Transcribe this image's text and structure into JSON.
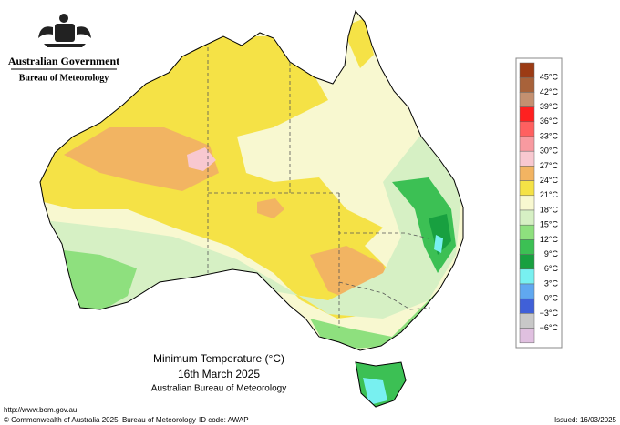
{
  "header": {
    "agency": "Australian Government",
    "bureau": "Bureau of Meteorology"
  },
  "map": {
    "title": "Minimum Temperature (°C)",
    "date": "16th March 2025",
    "source": "Australian Bureau of Meteorology"
  },
  "legend": {
    "labels": [
      "45°C",
      "42°C",
      "39°C",
      "36°C",
      "33°C",
      "30°C",
      "27°C",
      "24°C",
      "21°C",
      "18°C",
      "15°C",
      "12°C",
      "9°C",
      "6°C",
      "3°C",
      "0°C",
      "−3°C",
      "−6°C"
    ],
    "colors": [
      "#9c3b14",
      "#a8623a",
      "#c49070",
      "#ff2020",
      "#ff6060",
      "#f89aa0",
      "#f8c8d0",
      "#f2b462",
      "#f5e246",
      "#f8f8d0",
      "#d6f0c4",
      "#8ee07e",
      "#3cc054",
      "#18a040",
      "#78f0f0",
      "#60a8f0",
      "#4060d8",
      "#c8c8c8",
      "#e0c0e0"
    ]
  },
  "footer": {
    "url": "http://www.bom.gov.au",
    "copyright": "© Commonwealth of Australia 2025, Bureau of Meteorology",
    "id_code": "ID code: AWAP",
    "issued": "Issued: 16/03/2025"
  }
}
